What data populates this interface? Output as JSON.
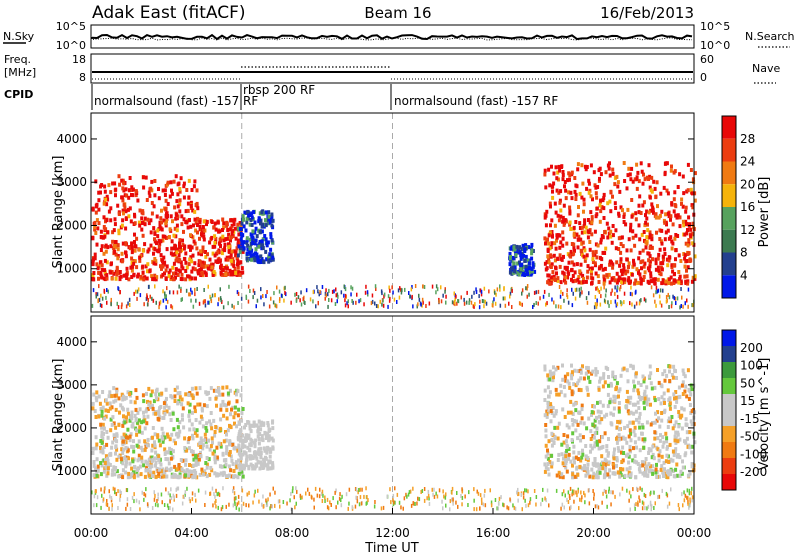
{
  "header": {
    "station": "Adak East (fitACF)",
    "beam": "Beam 16",
    "date": "16/Feb/2013"
  },
  "status_panel": {
    "left_label": "N.Sky",
    "right_label": "N.Search",
    "left_ticks": [
      "10^5",
      "10^0"
    ],
    "right_ticks": [
      "10^5",
      "10^0"
    ]
  },
  "freq_panel": {
    "left_label_1": "Freq.",
    "left_label_2": "[MHz]",
    "right_label": "Nave",
    "left_ticks": [
      "18",
      "8"
    ],
    "right_ticks": [
      "60",
      "0"
    ]
  },
  "cpid_panel": {
    "label": "CPID",
    "segments": [
      {
        "label": "normalsound (fast) -157 RF",
        "start_hour": 0,
        "end_hour": 6
      },
      {
        "label": "rbsp 200 RF",
        "start_hour": 6,
        "end_hour": 12
      },
      {
        "label": "normalsound (fast) -157 RF",
        "start_hour": 12,
        "end_hour": 24
      }
    ]
  },
  "colors": {
    "power_scale": [
      "#0018e8",
      "#23408e",
      "#3c7a50",
      "#57a25e",
      "#f5b30b",
      "#f07a12",
      "#ec3d10",
      "#e80808"
    ],
    "velocity_scale": [
      "#e80808",
      "#ec3d10",
      "#f07a12",
      "#f5a028",
      "#c8c8c8",
      "#c8c8c8",
      "#64c83c",
      "#3c9a3c",
      "#23408e",
      "#0018e8"
    ],
    "ground_scatter": "#c8c8c8"
  },
  "chart_data": [
    {
      "type": "heatmap",
      "title": "",
      "xlabel": "Time UT",
      "ylabel": "Slant Range [km]",
      "xlim": [
        0,
        24
      ],
      "ylim": [
        0,
        4600
      ],
      "x_ticks": [
        "00:00",
        "04:00",
        "08:00",
        "12:00",
        "16:00",
        "20:00",
        "00:00"
      ],
      "y_ticks": [
        "1000",
        "2000",
        "3000",
        "4000"
      ],
      "colorbar_label": "Power [dB]",
      "colorbar_ticks": [
        "4",
        "8",
        "12",
        "16",
        "20",
        "24",
        "28"
      ],
      "regions": [
        {
          "t_start": 0.0,
          "t_end": 4.2,
          "range_min": 800,
          "range_max": 3200,
          "level": "strong"
        },
        {
          "t_start": 4.2,
          "t_end": 6.0,
          "range_min": 900,
          "range_max": 2200,
          "level": "strong"
        },
        {
          "t_start": 5.8,
          "t_end": 7.2,
          "range_min": 1200,
          "range_max": 2400,
          "level": "weak"
        },
        {
          "t_start": 16.6,
          "t_end": 17.6,
          "range_min": 900,
          "range_max": 1600,
          "level": "weak"
        },
        {
          "t_start": 18.0,
          "t_end": 24.0,
          "range_min": 700,
          "range_max": 3500,
          "level": "strong"
        }
      ]
    },
    {
      "type": "heatmap",
      "title": "",
      "xlabel": "Time UT",
      "ylabel": "Slant Range [km]",
      "xlim": [
        0,
        24
      ],
      "ylim": [
        0,
        4600
      ],
      "x_ticks": [
        "00:00",
        "04:00",
        "08:00",
        "12:00",
        "16:00",
        "20:00",
        "00:00"
      ],
      "y_ticks": [
        "1000",
        "2000",
        "3000",
        "4000"
      ],
      "colorbar_label": "Velocity [m s^-1]",
      "colorbar_ticks": [
        "200",
        "100",
        "50",
        "15",
        "-15",
        "-50",
        "-100",
        "-200"
      ],
      "regions": [
        {
          "t_start": 0.0,
          "t_end": 6.0,
          "range_min": 900,
          "range_max": 3000,
          "level": "mixed"
        },
        {
          "t_start": 5.8,
          "t_end": 7.2,
          "range_min": 1100,
          "range_max": 2200,
          "level": "ground"
        },
        {
          "t_start": 18.0,
          "t_end": 24.0,
          "range_min": 900,
          "range_max": 3500,
          "level": "mixed"
        }
      ]
    }
  ]
}
